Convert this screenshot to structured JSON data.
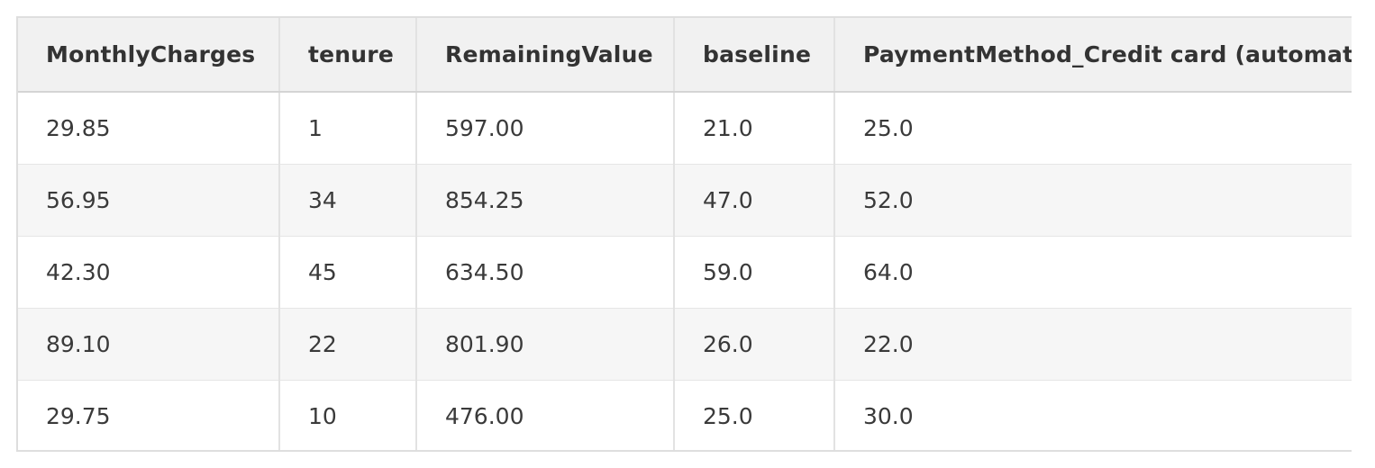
{
  "table": {
    "columns": [
      "MonthlyCharges",
      "tenure",
      "RemainingValue",
      "baseline",
      "PaymentMethod_Credit card (automatic)"
    ],
    "rows": [
      [
        "29.85",
        "1",
        "597.00",
        "21.0",
        "25.0"
      ],
      [
        "56.95",
        "34",
        "854.25",
        "47.0",
        "52.0"
      ],
      [
        "42.30",
        "45",
        "634.50",
        "59.0",
        "64.0"
      ],
      [
        "89.10",
        "22",
        "801.90",
        "26.0",
        "22.0"
      ],
      [
        "29.75",
        "10",
        "476.00",
        "25.0",
        "30.0"
      ]
    ]
  }
}
